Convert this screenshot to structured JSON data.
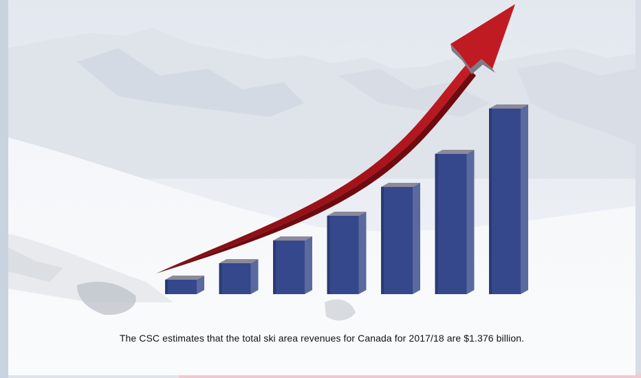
{
  "caption": "The CSC estimates that the total ski area revenues for Canada for 2017/18 are $1.376 billion.",
  "colors": {
    "bar_front": "#35488c",
    "bar_side": "#5a6a9e",
    "bar_top": "#8c8a9a",
    "arrow": "#b0141c",
    "arrow_dark": "#7a0d12",
    "sky": "#e9edf3",
    "snow": "#f6f7f9"
  },
  "chart_data": {
    "type": "bar",
    "title": "",
    "categories": [
      "",
      "",
      "",
      "",
      "",
      "",
      ""
    ],
    "values": [
      7,
      15,
      26,
      38,
      52,
      68,
      90
    ],
    "ylim": [
      0,
      100
    ],
    "grid": false,
    "legend": "none",
    "trend_arrow": "rising"
  }
}
